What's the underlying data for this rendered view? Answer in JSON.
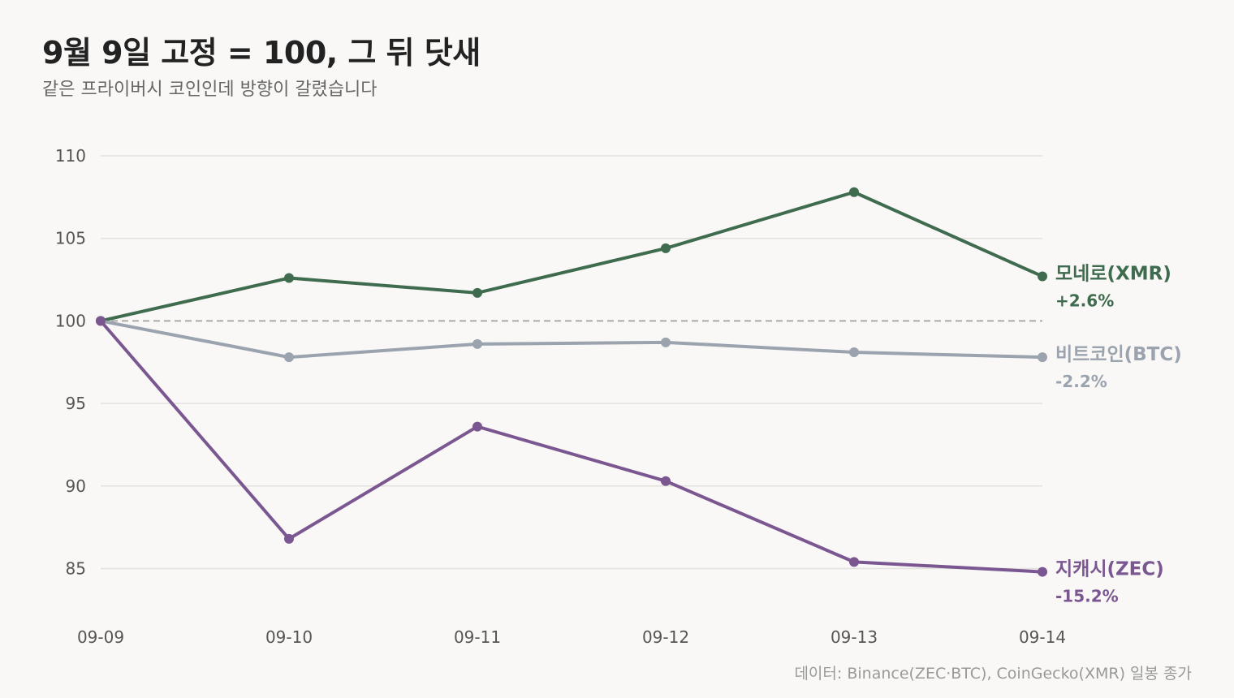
{
  "header": {
    "title": "9월 9일 고정 = 100, 그 뒤 닷새",
    "subtitle": "같은 프라이버시 코인인데 방향이 갈렸습니다"
  },
  "footer": {
    "source": "데이터: Binance(ZEC·BTC), CoinGecko(XMR) 일봉 종가"
  },
  "chart_data": {
    "type": "line",
    "title": "9월 9일 고정 = 100, 그 뒤 닷새",
    "subtitle": "같은 프라이버시 코인인데 방향이 갈렸습니다",
    "xlabel": "",
    "ylabel": "",
    "x": [
      "09-09",
      "09-10",
      "09-11",
      "09-12",
      "09-13",
      "09-14"
    ],
    "ylim": [
      82.5,
      110
    ],
    "yticks": [
      110,
      105,
      100,
      95,
      90,
      85
    ],
    "baseline": 100,
    "grid": true,
    "legend": "end-labels",
    "series": [
      {
        "name": "모네로(XMR)",
        "change": "+2.6%",
        "color": "#3f6b4f",
        "values": [
          100,
          102.6,
          101.7,
          104.4,
          107.8,
          102.7
        ]
      },
      {
        "name": "비트코인(BTC)",
        "change": "-2.2%",
        "color": "#9ba3ae",
        "values": [
          100,
          97.8,
          98.6,
          98.7,
          98.1,
          97.8
        ]
      },
      {
        "name": "지캐시(ZEC)",
        "change": "-15.2%",
        "color": "#7b5791",
        "values": [
          100,
          86.8,
          93.6,
          90.3,
          85.4,
          84.8
        ]
      }
    ]
  }
}
